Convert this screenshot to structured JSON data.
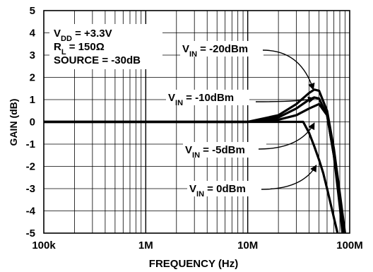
{
  "chart_data": {
    "type": "line",
    "title": "",
    "xlabel": "FREQUENCY (Hz)",
    "ylabel": "GAIN (dB)",
    "x_scale": "log",
    "xlim": [
      100000,
      100000000
    ],
    "ylim": [
      -5,
      5
    ],
    "grid": true,
    "x_ticks": [
      {
        "value": 100000,
        "label": "100k"
      },
      {
        "value": 1000000,
        "label": "1M"
      },
      {
        "value": 10000000,
        "label": "10M"
      },
      {
        "value": 100000000,
        "label": "100M"
      }
    ],
    "y_ticks": [
      {
        "value": 5,
        "label": "5"
      },
      {
        "value": 4,
        "label": "4"
      },
      {
        "value": 3,
        "label": "3"
      },
      {
        "value": 2,
        "label": "2"
      },
      {
        "value": 1,
        "label": "1"
      },
      {
        "value": 0,
        "label": "0"
      },
      {
        "value": -1,
        "label": "-1"
      },
      {
        "value": -2,
        "label": "-2"
      },
      {
        "value": -3,
        "label": "-3"
      },
      {
        "value": -4,
        "label": "-4"
      },
      {
        "value": -5,
        "label": "-5"
      }
    ],
    "conditions": [
      {
        "main": "V",
        "sub": "DD",
        "rest": " = +3.3V"
      },
      {
        "main": "R",
        "sub": "L",
        "rest": " = 150Ω"
      },
      {
        "main": "SOURCE = -30dB",
        "sub": "",
        "rest": ""
      }
    ],
    "series": [
      {
        "label_main": "V",
        "label_sub": "IN",
        "label_rest": " = -20dBm",
        "x": [
          100000,
          10000000,
          20000000,
          30000000,
          40000000,
          45000000,
          50000000,
          60000000,
          70000000,
          80000000,
          90000000
        ],
        "y": [
          0,
          0,
          0.3,
          0.8,
          1.3,
          1.45,
          1.4,
          0.5,
          -1.2,
          -3.2,
          -5
        ]
      },
      {
        "label_main": "V",
        "label_sub": "IN",
        "label_rest": " = -10dBm",
        "x": [
          100000,
          10000000,
          20000000,
          30000000,
          40000000,
          45000000,
          50000000,
          60000000,
          70000000,
          80000000,
          87000000
        ],
        "y": [
          0,
          0,
          0.2,
          0.6,
          1.0,
          1.1,
          1.05,
          0.3,
          -1.5,
          -3.5,
          -5
        ]
      },
      {
        "label_main": "V",
        "label_sub": "IN",
        "label_rest": " = -5dBm",
        "x": [
          100000,
          10000000,
          20000000,
          30000000,
          40000000,
          50000000,
          60000000,
          70000000,
          80000000,
          85000000
        ],
        "y": [
          0,
          0,
          0.1,
          0.3,
          0.6,
          0.8,
          0.3,
          -1.5,
          -3.8,
          -5
        ]
      },
      {
        "label_main": "V",
        "label_sub": "IN",
        "label_rest": " = 0dBm",
        "x": [
          100000,
          10000000,
          20000000,
          30000000,
          35000000,
          40000000,
          45000000,
          50000000,
          55000000,
          60000000,
          70000000,
          76000000
        ],
        "y": [
          0,
          0,
          0,
          0,
          0,
          -0.5,
          -1.1,
          -1.7,
          -2.3,
          -3.0,
          -4.3,
          -5
        ]
      }
    ],
    "annotations": [
      {
        "series": 0,
        "arrow_to": {
          "x": 44000000,
          "y": 1.45
        }
      },
      {
        "series": 1,
        "arrow_to": {
          "x": 45000000,
          "y": 1.05
        }
      },
      {
        "series": 2,
        "arrow_to": {
          "x": 45000000,
          "y": -0.05
        }
      },
      {
        "series": 3,
        "arrow_to": {
          "x": 47000000,
          "y": -1.95
        }
      }
    ]
  }
}
